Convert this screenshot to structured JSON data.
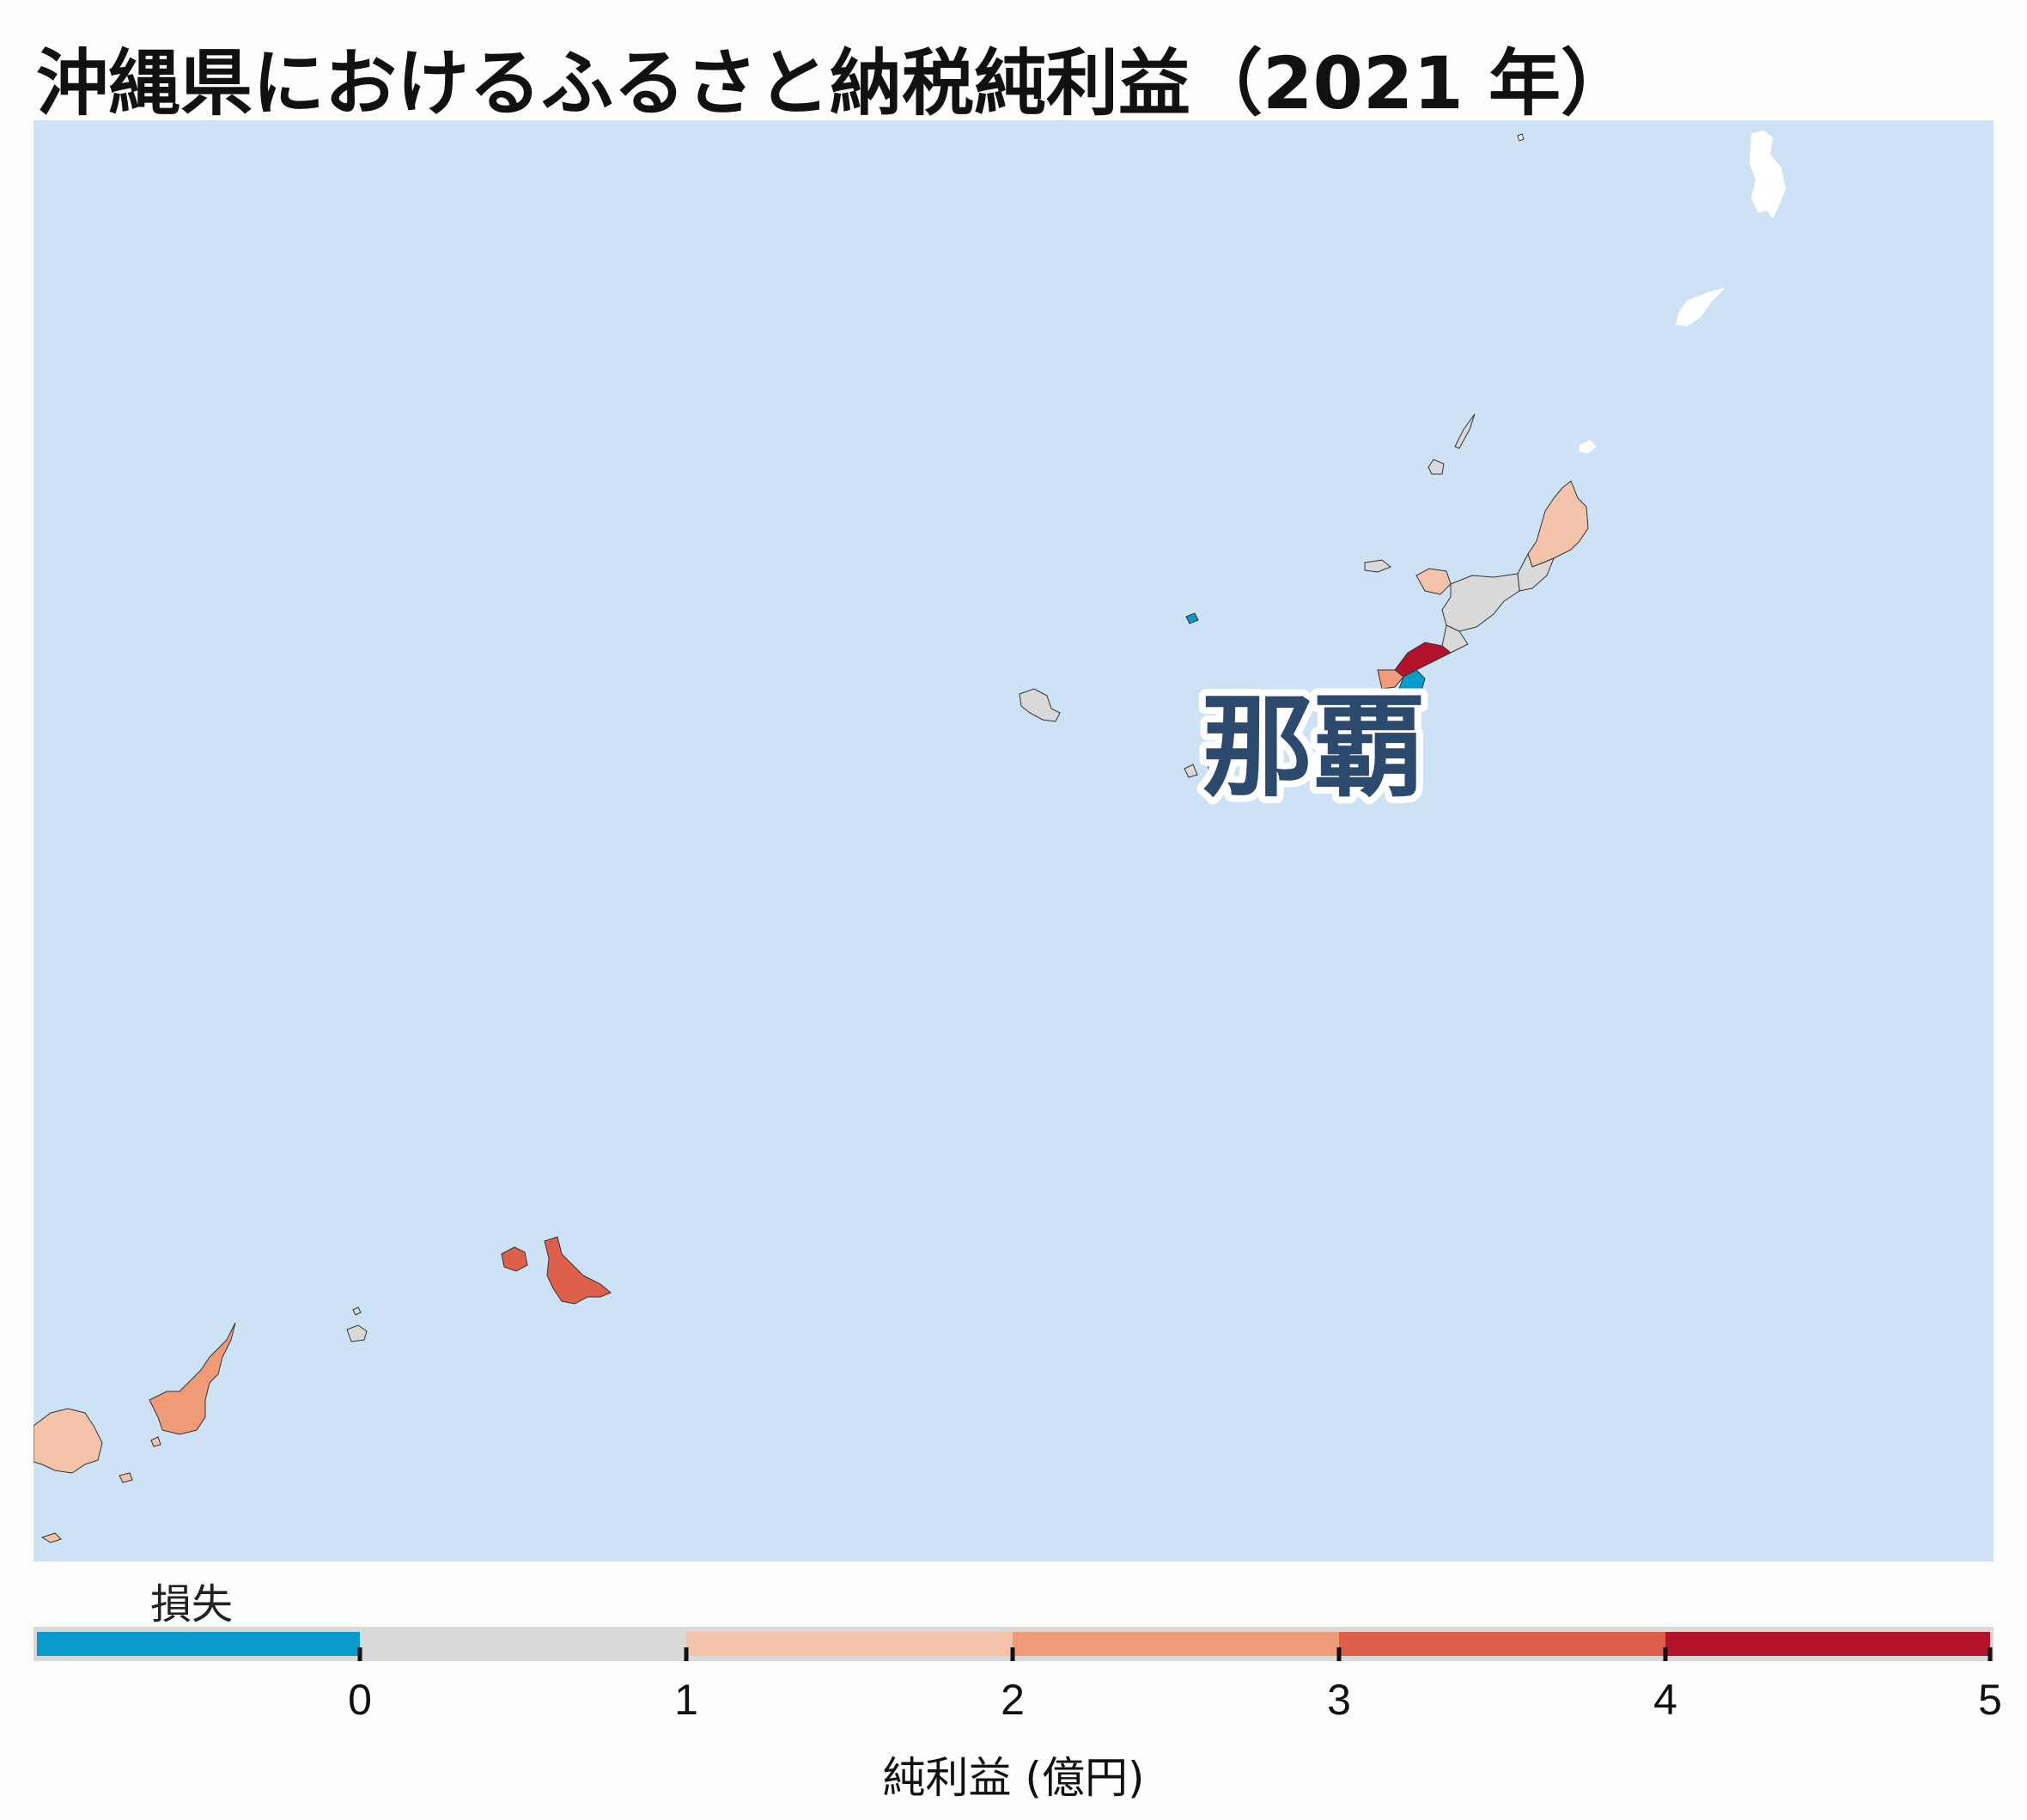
{
  "title": "沖縄県におけるふるさと納税純利益（2021 年）",
  "map": {
    "city_label": "那覇",
    "colors": {
      "sea": "#cde3f5",
      "outside": "#ffffff",
      "loss": "#0a9acb",
      "bin_0_1": "#d9d9d9",
      "bin_1_2": "#f4c4aa",
      "bin_2_3": "#f19a78",
      "bin_3_4": "#de5f4a",
      "bin_4_5": "#b3122b",
      "border": "#333333",
      "label_text": "#2b4a6e",
      "label_halo": "#ffffff"
    }
  },
  "legend": {
    "loss_label": "損失",
    "ticks": [
      "0",
      "1",
      "2",
      "3",
      "4",
      "5"
    ],
    "xlabel": "純利益 (億円)",
    "bins": [
      {
        "from": null,
        "to": 0,
        "color": "#0a9acb"
      },
      {
        "from": 0,
        "to": 1,
        "color": "#d9d9d9"
      },
      {
        "from": 1,
        "to": 2,
        "color": "#f4c4aa"
      },
      {
        "from": 2,
        "to": 3,
        "color": "#f19a78"
      },
      {
        "from": 3,
        "to": 4,
        "color": "#de5f4a"
      },
      {
        "from": 4,
        "to": 5,
        "color": "#b3122b"
      }
    ]
  }
}
